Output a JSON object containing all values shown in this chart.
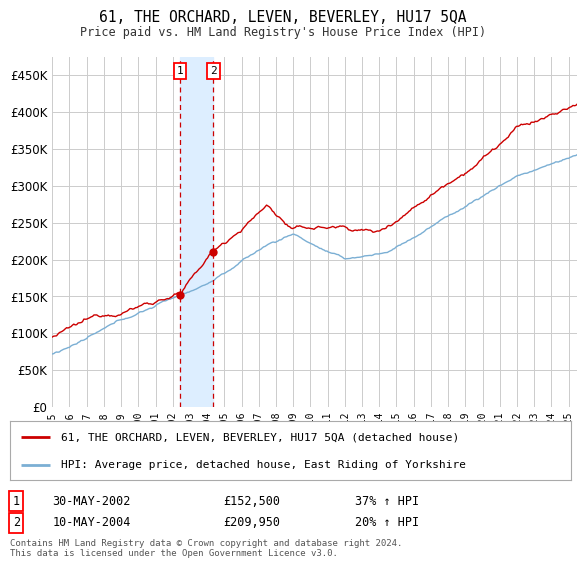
{
  "title": "61, THE ORCHARD, LEVEN, BEVERLEY, HU17 5QA",
  "subtitle": "Price paid vs. HM Land Registry's House Price Index (HPI)",
  "ytick_values": [
    0,
    50000,
    100000,
    150000,
    200000,
    250000,
    300000,
    350000,
    400000,
    450000
  ],
  "ylim": [
    0,
    475000
  ],
  "xlim_start": 1995.0,
  "xlim_end": 2025.5,
  "sale1_date": 2002.41,
  "sale1_price": 152500,
  "sale1_label": "30-MAY-2002",
  "sale1_amount": "£152,500",
  "sale1_hpi": "37% ↑ HPI",
  "sale2_date": 2004.36,
  "sale2_price": 209950,
  "sale2_label": "10-MAY-2004",
  "sale2_amount": "£209,950",
  "sale2_hpi": "20% ↑ HPI",
  "red_line_color": "#cc0000",
  "blue_line_color": "#7bafd4",
  "shade_color": "#ddeeff",
  "grid_color": "#cccccc",
  "legend_label_red": "61, THE ORCHARD, LEVEN, BEVERLEY, HU17 5QA (detached house)",
  "legend_label_blue": "HPI: Average price, detached house, East Riding of Yorkshire",
  "footnote": "Contains HM Land Registry data © Crown copyright and database right 2024.\nThis data is licensed under the Open Government Licence v3.0.",
  "background_color": "#ffffff"
}
